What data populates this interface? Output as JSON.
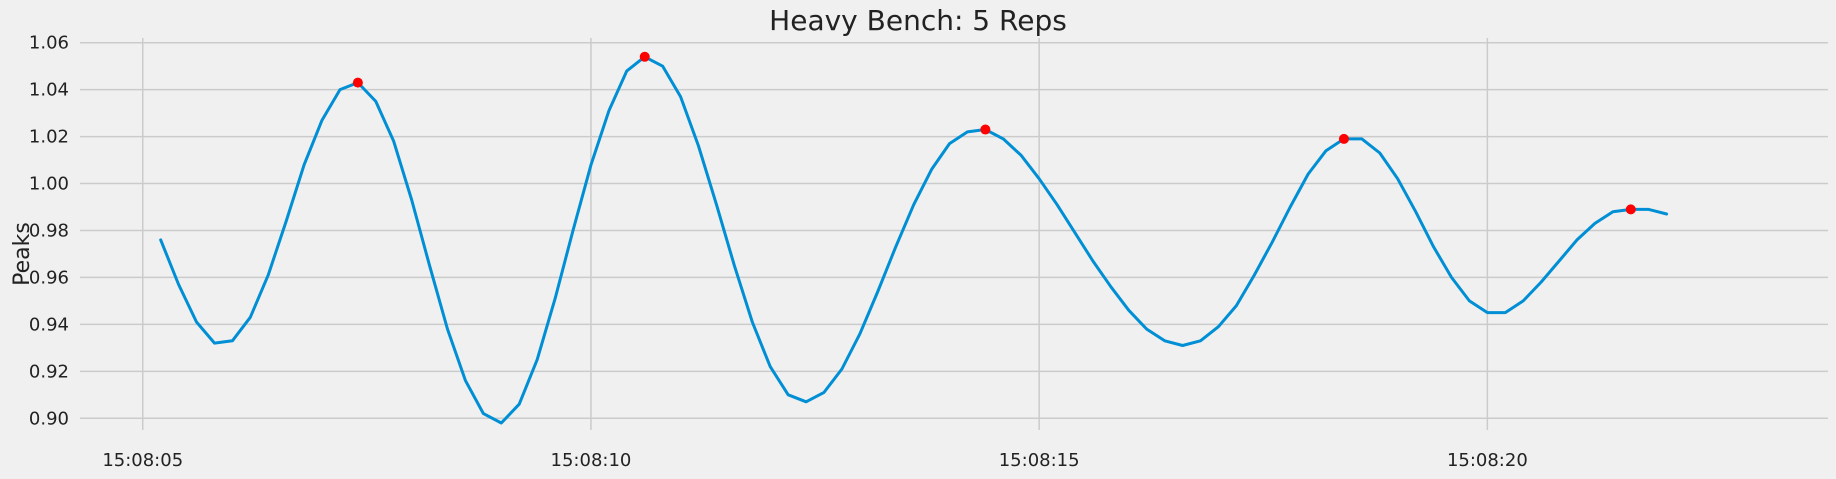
{
  "chart_data": {
    "type": "line",
    "title": "Heavy Bench: 5 Reps",
    "xlabel": "",
    "ylabel": "Peaks",
    "x_unit": "time (HH:MM:SS)",
    "x_ticks": [
      "15:08:05",
      "15:08:10",
      "15:08:15",
      "15:08:20"
    ],
    "x_tick_values": [
      5,
      10,
      15,
      20
    ],
    "xlim": [
      4.3,
      23.8
    ],
    "ylim": [
      0.895,
      1.062
    ],
    "y_ticks": [
      "0.90",
      "0.92",
      "0.94",
      "0.96",
      "0.98",
      "1.00",
      "1.02",
      "1.04",
      "1.06"
    ],
    "y_tick_values": [
      0.9,
      0.92,
      0.94,
      0.96,
      0.98,
      1.0,
      1.02,
      1.04,
      1.06
    ],
    "grid": true,
    "line_color": "#008fd5",
    "peak_color": "#ff0000",
    "background": "#f0f0f0",
    "series": [
      {
        "x": [
          5.2,
          5.4,
          5.6,
          5.8,
          6.0,
          6.2,
          6.4,
          6.6,
          6.8,
          7.0,
          7.2,
          7.4,
          7.6,
          7.8,
          8.0,
          8.2,
          8.4,
          8.6,
          8.8,
          9.0,
          9.2,
          9.4,
          9.6,
          9.8,
          10.0,
          10.2,
          10.4,
          10.6,
          10.8,
          11.0,
          11.2,
          11.4,
          11.6,
          11.8,
          12.0,
          12.2,
          12.4,
          12.6,
          12.8,
          13.0,
          13.2,
          13.4,
          13.6,
          13.8,
          14.0,
          14.2,
          14.4,
          14.6,
          14.8,
          15.0,
          15.2,
          15.4,
          15.6,
          15.8,
          16.0,
          16.2,
          16.4,
          16.6,
          16.8,
          17.0,
          17.2,
          17.4,
          17.6,
          17.8,
          18.0,
          18.2,
          18.4,
          18.6,
          18.8,
          19.0,
          19.2,
          19.4,
          19.6,
          19.8,
          20.0,
          20.2,
          20.4,
          20.6,
          20.8,
          21.0,
          21.2,
          21.4,
          21.6,
          21.8,
          22.0
        ],
        "y": [
          0.976,
          0.957,
          0.941,
          0.932,
          0.933,
          0.943,
          0.961,
          0.984,
          1.008,
          1.027,
          1.04,
          1.043,
          1.035,
          1.018,
          0.993,
          0.965,
          0.938,
          0.916,
          0.902,
          0.898,
          0.906,
          0.925,
          0.951,
          0.98,
          1.008,
          1.031,
          1.048,
          1.054,
          1.05,
          1.037,
          1.016,
          0.991,
          0.965,
          0.941,
          0.922,
          0.91,
          0.907,
          0.911,
          0.921,
          0.936,
          0.954,
          0.973,
          0.991,
          1.006,
          1.017,
          1.022,
          1.023,
          1.019,
          1.012,
          1.002,
          0.991,
          0.979,
          0.967,
          0.956,
          0.946,
          0.938,
          0.933,
          0.931,
          0.933,
          0.939,
          0.948,
          0.961,
          0.975,
          0.99,
          1.004,
          1.014,
          1.019,
          1.019,
          1.013,
          1.002,
          0.988,
          0.973,
          0.96,
          0.95,
          0.945,
          0.945,
          0.95,
          0.958,
          0.967,
          0.976,
          0.983,
          0.988,
          0.989,
          0.989,
          0.987
        ]
      }
    ],
    "peaks": {
      "x": [
        7.4,
        10.6,
        14.4,
        18.4,
        21.6
      ],
      "y": [
        1.043,
        1.054,
        1.023,
        1.019,
        0.989
      ]
    }
  }
}
